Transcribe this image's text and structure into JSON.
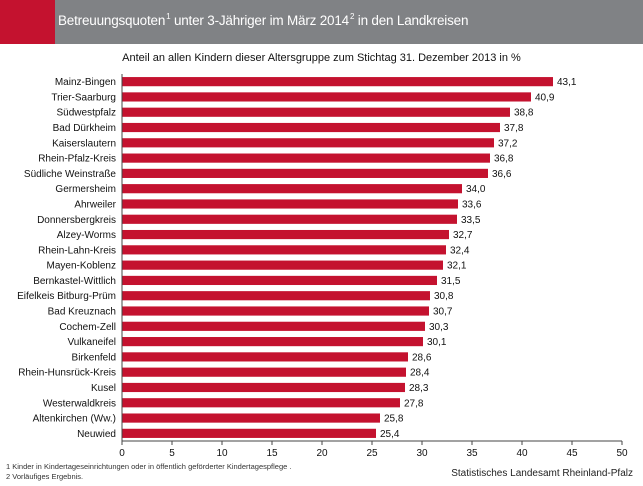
{
  "header": {
    "title_main": "Betreuungsquoten",
    "title_sup1": "1",
    "title_mid": " unter 3-Jähriger im März 2014",
    "title_sup2": "2",
    "title_end": " in den Landkreisen"
  },
  "subtitle": "Anteil an allen Kindern dieser Altersgruppe zum Stichtag 31. Dezember 2013 in %",
  "footnotes": [
    "1 Kinder in Kindertageseinrichtungen oder in öffentlich geförderter Kindertagespflege .",
    "2 Vorläufiges Ergebnis."
  ],
  "source": "Statistisches Landesamt Rheinland-Pfalz",
  "colors": {
    "bar": "#c4122f",
    "header": "#808285",
    "accent": "#c4122f"
  },
  "chart_data": {
    "type": "bar",
    "orientation": "horizontal",
    "categories": [
      "Mainz-Bingen",
      "Trier-Saarburg",
      "Südwestpfalz",
      "Bad Dürkheim",
      "Kaiserslautern",
      "Rhein-Pfalz-Kreis",
      "Südliche Weinstraße",
      "Germersheim",
      "Ahrweiler",
      "Donnersbergkreis",
      "Alzey-Worms",
      "Rhein-Lahn-Kreis",
      "Mayen-Koblenz",
      "Bernkastel-Wittlich",
      "Eifelkeis Bitburg-Prüm",
      "Bad Kreuznach",
      "Cochem-Zell",
      "Vulkaneifel",
      "Birkenfeld",
      "Rhein-Hunsrück-Kreis",
      "Kusel",
      "Westerwaldkreis",
      "Altenkirchen (Ww.)",
      "Neuwied"
    ],
    "values": [
      43.1,
      40.9,
      38.8,
      37.8,
      37.2,
      36.8,
      36.6,
      34.0,
      33.6,
      33.5,
      32.7,
      32.4,
      32.1,
      31.5,
      30.8,
      30.7,
      30.3,
      30.1,
      28.6,
      28.4,
      28.3,
      27.8,
      25.8,
      25.4
    ],
    "value_labels": [
      "43,1",
      "40,9",
      "38,8",
      "37,8",
      "37,2",
      "36,8",
      "36,6",
      "34,0",
      "33,6",
      "33,5",
      "32,7",
      "32,4",
      "32,1",
      "31,5",
      "30,8",
      "30,7",
      "30,3",
      "30,1",
      "28,6",
      "28,4",
      "28,3",
      "27,8",
      "25,8",
      "25,4"
    ],
    "xlim": [
      0,
      50
    ],
    "xticks": [
      0,
      5,
      10,
      15,
      20,
      25,
      30,
      35,
      40,
      45,
      50
    ],
    "title": "",
    "xlabel": "",
    "ylabel": "",
    "grid": false,
    "legend": "none"
  }
}
